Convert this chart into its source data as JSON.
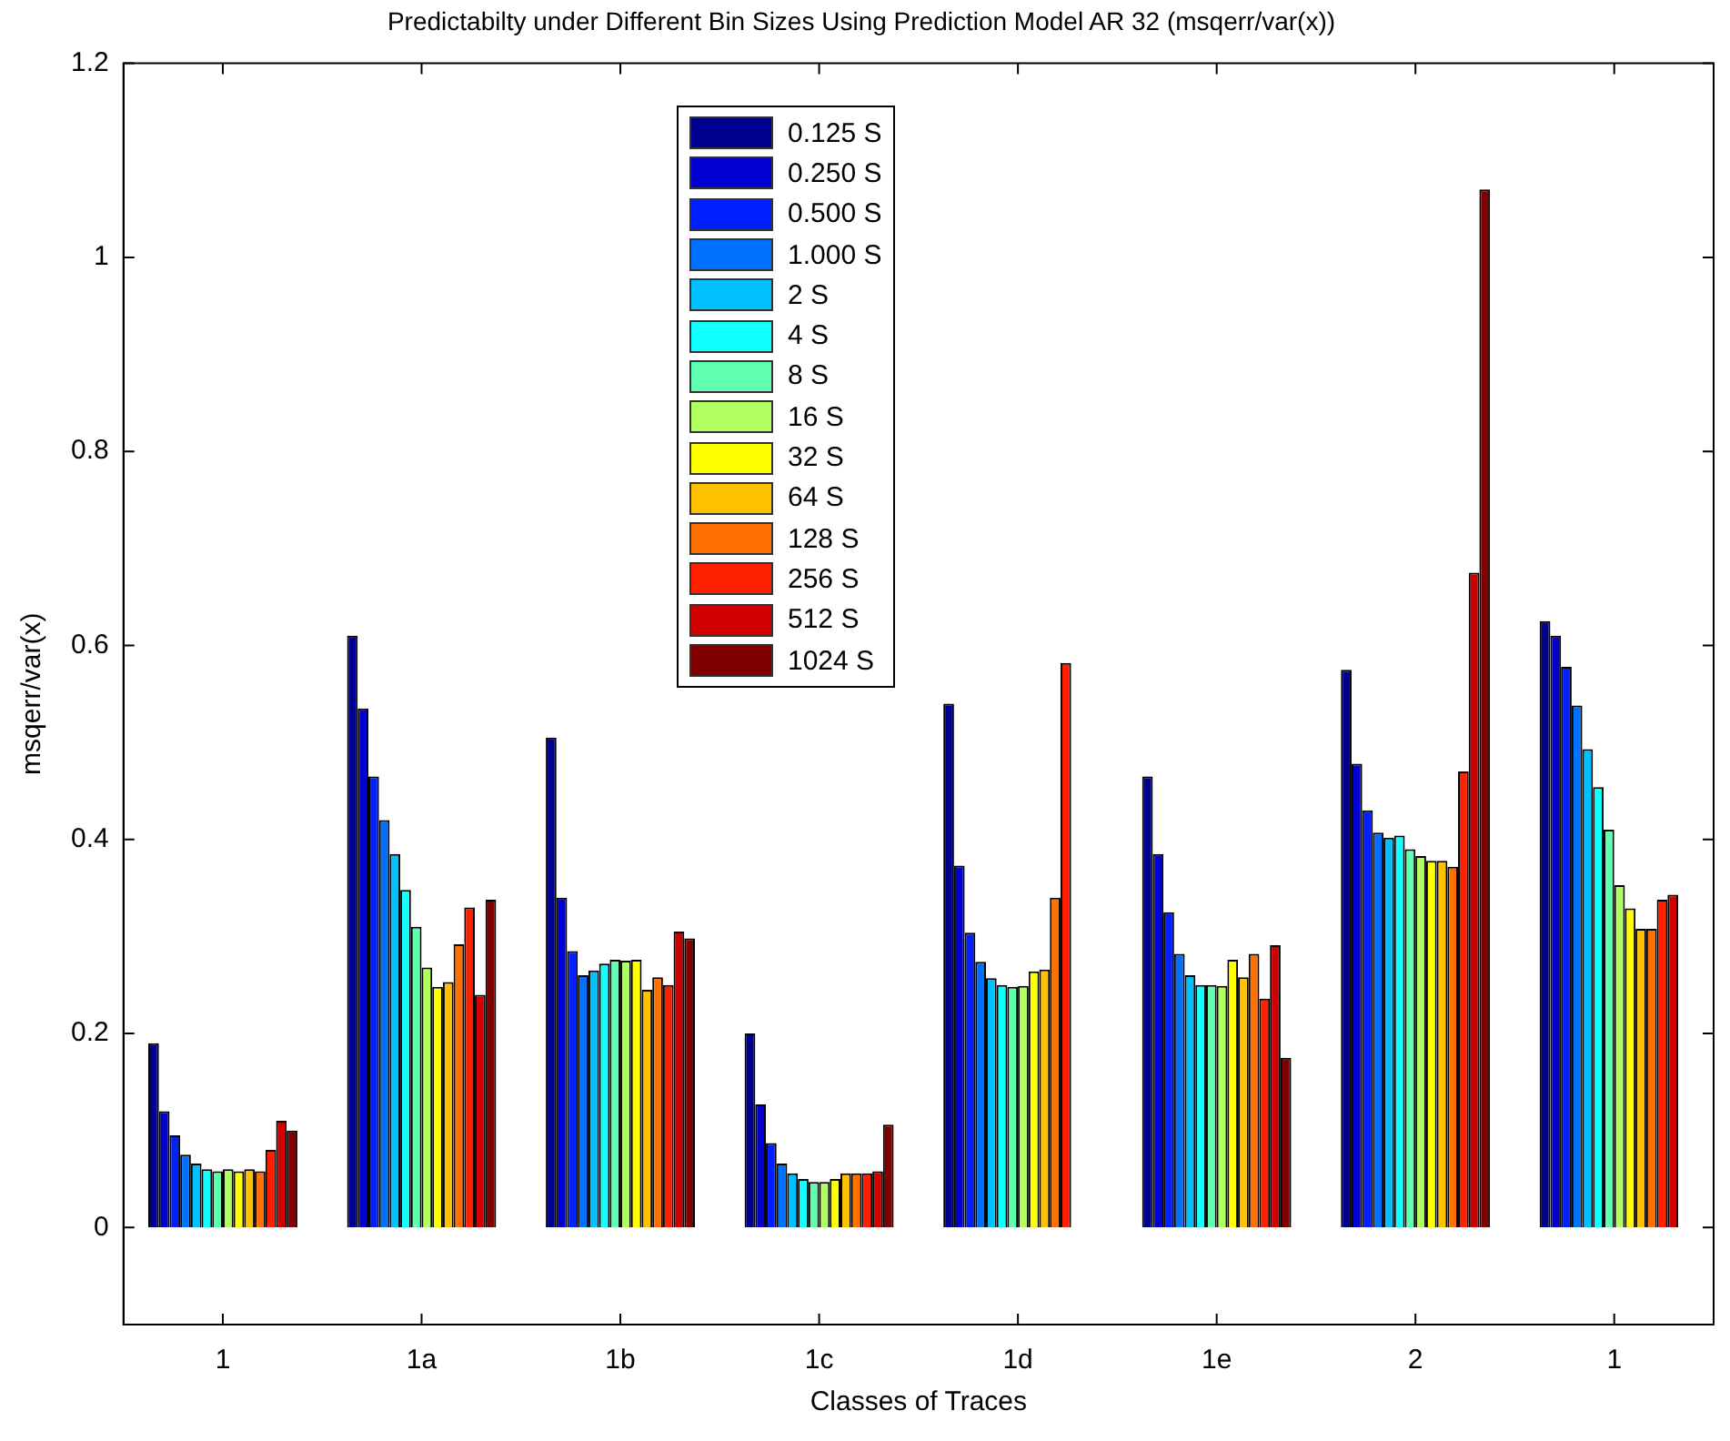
{
  "chart_data": {
    "type": "bar",
    "title": "Predictabilty under Different Bin Sizes Using Prediction Model AR 32 (msqerr/var(x))",
    "xlabel": "Classes of Traces",
    "ylabel": "msqerr/var(x)",
    "categories": [
      "1",
      "1a",
      "1b",
      "1c",
      "1d",
      "1e",
      "2",
      "1"
    ],
    "ylim": [
      -0.1,
      1.2
    ],
    "yticks": [
      0,
      0.2,
      0.4,
      0.6,
      0.8,
      1,
      1.2
    ],
    "legend": "top",
    "series": [
      {
        "name": "0.125 S",
        "color": "#000090",
        "values": [
          0.19,
          0.61,
          0.505,
          0.2,
          0.54,
          0.465,
          0.575,
          0.625
        ]
      },
      {
        "name": "0.250 S",
        "color": "#0000d0",
        "values": [
          0.12,
          0.535,
          0.34,
          0.127,
          0.373,
          0.385,
          0.478,
          0.61
        ]
      },
      {
        "name": "0.500 S",
        "color": "#0020ff",
        "values": [
          0.095,
          0.465,
          0.285,
          0.087,
          0.304,
          0.325,
          0.43,
          0.578
        ]
      },
      {
        "name": "1.000 S",
        "color": "#0070ff",
        "values": [
          0.075,
          0.42,
          0.26,
          0.066,
          0.274,
          0.282,
          0.407,
          0.538
        ]
      },
      {
        "name": "2 S",
        "color": "#00c0ff",
        "values": [
          0.066,
          0.385,
          0.265,
          0.056,
          0.257,
          0.26,
          0.402,
          0.493
        ]
      },
      {
        "name": "4 S",
        "color": "#10ffff",
        "values": [
          0.06,
          0.348,
          0.272,
          0.05,
          0.25,
          0.25,
          0.404,
          0.454
        ]
      },
      {
        "name": "8 S",
        "color": "#60ffb0",
        "values": [
          0.058,
          0.31,
          0.276,
          0.047,
          0.248,
          0.25,
          0.39,
          0.41
        ]
      },
      {
        "name": "16 S",
        "color": "#b0ff60",
        "values": [
          0.06,
          0.268,
          0.275,
          0.047,
          0.249,
          0.249,
          0.383,
          0.353
        ]
      },
      {
        "name": "32 S",
        "color": "#ffff00",
        "values": [
          0.058,
          0.248,
          0.276,
          0.05,
          0.264,
          0.276,
          0.378,
          0.329
        ]
      },
      {
        "name": "64 S",
        "color": "#ffc000",
        "values": [
          0.06,
          0.253,
          0.245,
          0.056,
          0.266,
          0.258,
          0.378,
          0.308
        ]
      },
      {
        "name": "128 S",
        "color": "#ff7000",
        "values": [
          0.058,
          0.292,
          0.258,
          0.056,
          0.34,
          0.282,
          0.372,
          0.308
        ]
      },
      {
        "name": "256 S",
        "color": "#ff2000",
        "values": [
          0.08,
          0.33,
          0.25,
          0.056,
          0.582,
          0.236,
          0.47,
          0.338
        ]
      },
      {
        "name": "512 S",
        "color": "#d00000",
        "values": [
          0.11,
          0.24,
          0.305,
          0.058,
          null,
          0.291,
          0.675,
          0.343
        ]
      },
      {
        "name": "1024 S",
        "color": "#800000",
        "values": [
          0.1,
          0.338,
          0.298,
          0.106,
          null,
          0.175,
          1.07,
          null
        ]
      }
    ]
  }
}
